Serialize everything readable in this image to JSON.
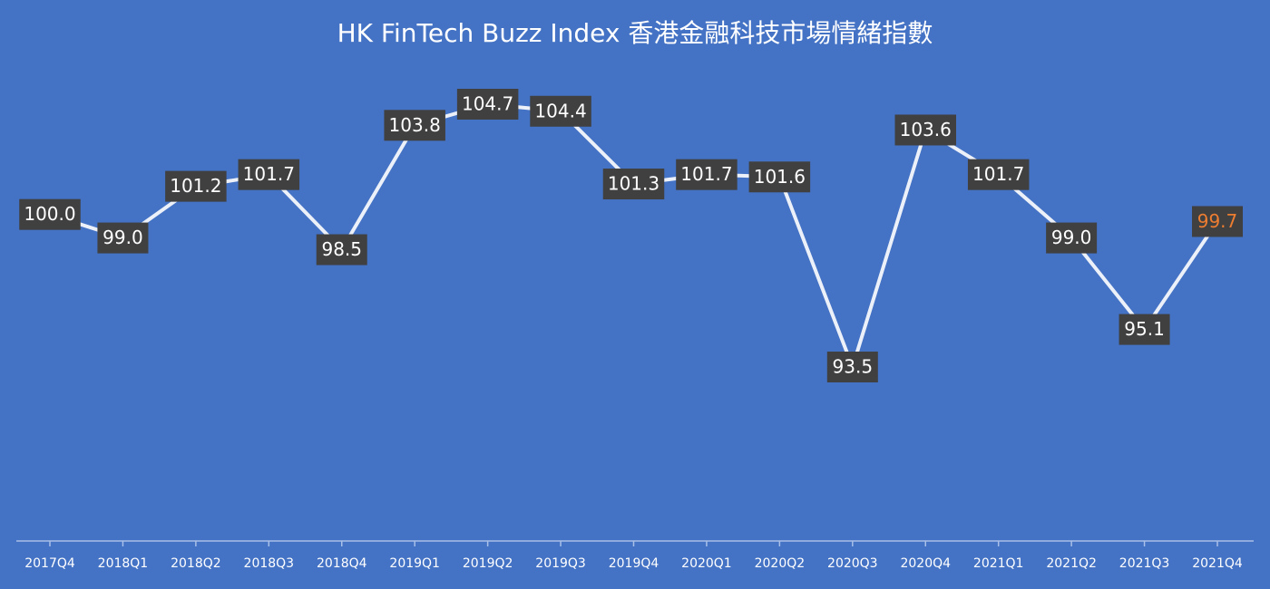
{
  "chart_data": {
    "type": "line",
    "title": "HK FinTech Buzz Index 香港金融科技市場情緒指數",
    "categories": [
      "2017Q4",
      "2018Q1",
      "2018Q2",
      "2018Q3",
      "2018Q4",
      "2019Q1",
      "2019Q2",
      "2019Q3",
      "2019Q4",
      "2020Q1",
      "2020Q2",
      "2020Q3",
      "2020Q4",
      "2021Q1",
      "2021Q2",
      "2021Q3",
      "2021Q4"
    ],
    "values": [
      100.0,
      99.0,
      101.2,
      101.7,
      98.5,
      103.8,
      104.7,
      104.4,
      101.3,
      101.7,
      101.6,
      93.5,
      103.6,
      101.7,
      99.0,
      95.1,
      99.7
    ],
    "value_labels": [
      "100.0",
      "99.0",
      "101.2",
      "101.7",
      "98.5",
      "103.8",
      "104.7",
      "104.4",
      "101.3",
      "101.7",
      "101.6",
      "93.5",
      "103.6",
      "101.7",
      "99.0",
      "95.1",
      "99.7"
    ],
    "color": "#ffffff",
    "background": "#4472c4",
    "label_background": "#404040",
    "label_color": "#ffffff",
    "last_label_color": "#ed7d31"
  }
}
